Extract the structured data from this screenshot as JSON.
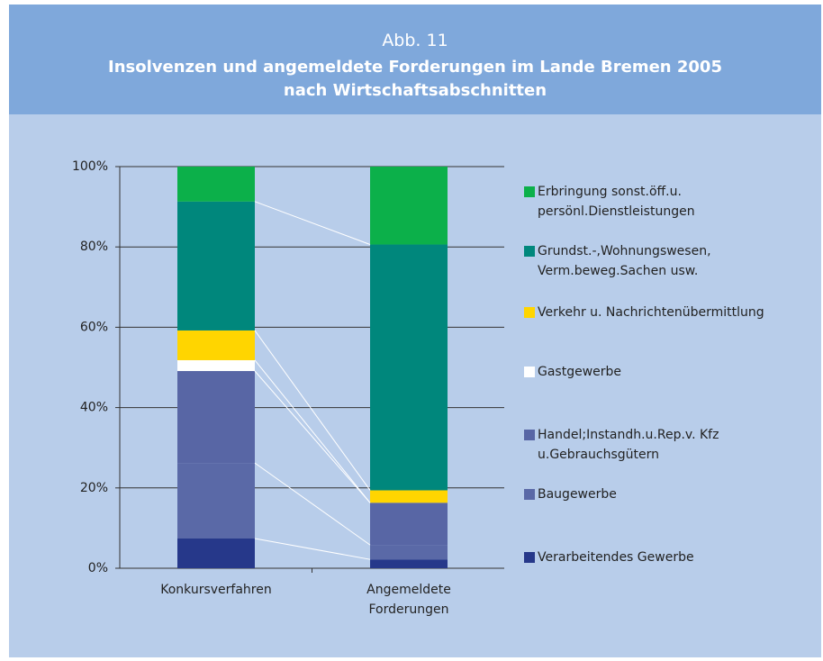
{
  "chart_data": {
    "type": "stacked_bar",
    "fragment": "n",
    "subtitle": "Abb. 11",
    "title": "Insolvenzen und angemeldete Forderungen im Lande Bremen 2005\nnach Wirtschaftsabschnitten",
    "categories": [
      "Konkursverfahren",
      "Angemeldete\nForderungen"
    ],
    "series": [
      {
        "name": "Verarbeitendes Gewerbe",
        "color": "#26388a",
        "values": [
          7.4,
          2.2
        ]
      },
      {
        "name": "Baugewerbe",
        "color": "#5a69a7",
        "values": [
          18.8,
          3.6
        ]
      },
      {
        "name": "Handel;Instandh.u.Rep.v. Kfz\nu.Gebrauchsgütern",
        "color": "#5866a5",
        "values": [
          22.9,
          10.5
        ]
      },
      {
        "name": "Gastgewerbe",
        "color": "#ffffff",
        "values": [
          2.7,
          0
        ]
      },
      {
        "name": "Verkehr u. Nachrichtenübermittlung",
        "color": "#ffd500",
        "values": [
          7.4,
          3.1
        ]
      },
      {
        "name": "Grundst.-,Wohnungswesen,\nVerm.beweg.Sachen usw.",
        "color": "#00877c",
        "values": [
          32.1,
          61.2
        ]
      },
      {
        "name": "Erbringung sonst.öff.u.\npersönl.Dienstleistungen",
        "color": "#0cb04a",
        "values": [
          8.7,
          19.4
        ]
      }
    ],
    "ylim": [
      0,
      100
    ],
    "yticks": [
      {
        "value": 0,
        "label": "0%"
      },
      {
        "value": 20,
        "label": "20%"
      },
      {
        "value": 40,
        "label": "40%"
      },
      {
        "value": 60,
        "label": "60%"
      },
      {
        "value": 80,
        "label": "80%"
      },
      {
        "value": 100,
        "label": "100%"
      }
    ],
    "grid": true,
    "legend": "right"
  }
}
